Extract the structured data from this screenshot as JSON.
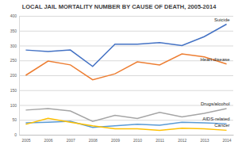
{
  "chart_data": {
    "type": "line",
    "title": "LOCAL JAIL MORTALITY NUMBER BY CAUSE OF DEATH, 2005-2014",
    "categories": [
      "2005",
      "2006",
      "2007",
      "2008",
      "2009",
      "2010",
      "2011",
      "2012",
      "2013",
      "2014"
    ],
    "series": [
      {
        "name": "Suicide",
        "color": "#4472c4",
        "values": [
          285,
          280,
          285,
          230,
          305,
          305,
          310,
          300,
          330,
          372
        ]
      },
      {
        "name": "Heart disease",
        "color": "#ed7d31",
        "values": [
          200,
          248,
          235,
          185,
          205,
          245,
          235,
          272,
          262,
          238
        ]
      },
      {
        "name": "Drugs/alcohol",
        "color": "#a5a5a5",
        "values": [
          83,
          88,
          80,
          45,
          65,
          55,
          75,
          60,
          72,
          88
        ]
      },
      {
        "name": "AIDS-related",
        "color": "#5b9bd5",
        "values": [
          40,
          42,
          45,
          25,
          30,
          35,
          32,
          42,
          40,
          37
        ]
      },
      {
        "name": "Cancer",
        "color": "#ffc000",
        "values": [
          35,
          55,
          42,
          30,
          20,
          20,
          15,
          22,
          20,
          15
        ]
      }
    ],
    "ylim": [
      0,
      400
    ],
    "yticks": [
      0,
      50,
      100,
      150,
      200,
      250,
      300,
      350,
      400
    ],
    "grid": true
  }
}
